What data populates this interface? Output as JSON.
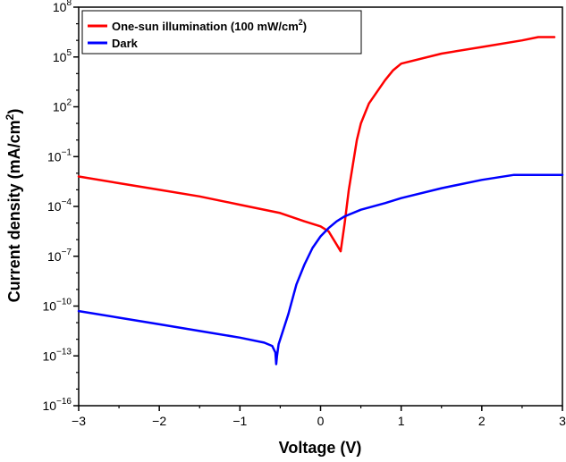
{
  "chart_data": {
    "type": "line",
    "xlabel": "Voltage (V)",
    "ylabel_main": "Current density (mA/cm",
    "ylabel_sup": "2",
    "ylabel_tail": ")",
    "xlim": [
      -3,
      3
    ],
    "ylim_log10": [
      -16,
      8
    ],
    "y_scale": "log",
    "x_ticks": [
      -3,
      -2,
      -1,
      0,
      1,
      2,
      3
    ],
    "x_tick_labels": [
      "−3",
      "−2",
      "−1",
      "0",
      "1",
      "2",
      "3"
    ],
    "y_tick_exponents": [
      -16,
      -13,
      -10,
      -7,
      -4,
      -1,
      2,
      5,
      8
    ],
    "y_tick_base": "10",
    "y_tick_sup_labels": [
      "−16",
      "−13",
      "−10",
      "−7",
      "−4",
      "−1",
      "2",
      "5",
      "8"
    ],
    "grid": false,
    "legend_position": "top-left",
    "series": [
      {
        "name": "One-sun illumination (100 mW/cm",
        "name_sup": "2",
        "name_tail": ")",
        "color": "#ff0000",
        "x": [
          -3.0,
          -2.5,
          -2.0,
          -1.5,
          -1.0,
          -0.5,
          -0.2,
          0.0,
          0.1,
          0.15,
          0.2,
          0.25,
          0.3,
          0.35,
          0.4,
          0.45,
          0.5,
          0.55,
          0.6,
          0.7,
          0.8,
          0.9,
          1.0,
          1.5,
          2.0,
          2.5,
          2.7,
          2.9
        ],
        "log10_y": [
          -2.2,
          -2.6,
          -3.0,
          -3.4,
          -3.9,
          -4.4,
          -4.9,
          -5.2,
          -5.5,
          -5.9,
          -6.3,
          -6.7,
          -5.0,
          -3.0,
          -1.5,
          0.0,
          1.0,
          1.6,
          2.2,
          2.9,
          3.6,
          4.2,
          4.6,
          5.2,
          5.6,
          6.0,
          6.2,
          6.2
        ]
      },
      {
        "name": "Dark",
        "color": "#0000ff",
        "x": [
          -3.0,
          -2.5,
          -2.0,
          -1.5,
          -1.0,
          -0.7,
          -0.6,
          -0.56,
          -0.55,
          -0.54,
          -0.52,
          -0.5,
          -0.4,
          -0.3,
          -0.2,
          -0.1,
          0.0,
          0.1,
          0.2,
          0.3,
          0.5,
          0.8,
          1.0,
          1.5,
          2.0,
          2.4,
          2.7,
          3.0
        ],
        "log10_y": [
          -10.3,
          -10.7,
          -11.1,
          -11.5,
          -11.9,
          -12.2,
          -12.4,
          -12.8,
          -13.5,
          -13.0,
          -12.3,
          -12.0,
          -10.5,
          -8.7,
          -7.5,
          -6.5,
          -5.8,
          -5.3,
          -4.9,
          -4.6,
          -4.2,
          -3.8,
          -3.5,
          -2.9,
          -2.4,
          -2.1,
          -2.1,
          -2.1
        ]
      }
    ]
  }
}
